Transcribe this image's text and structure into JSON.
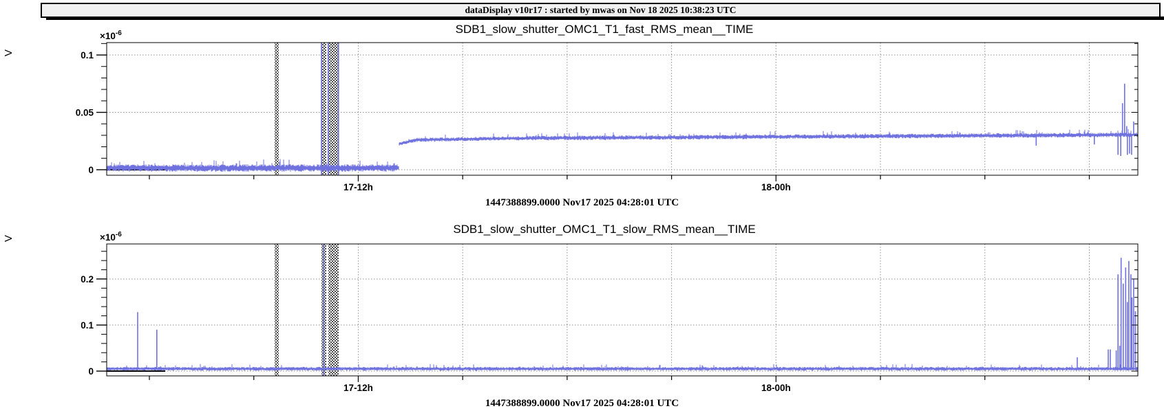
{
  "window": {
    "title": "dataDisplay v10r17 : started by mwas on Nov 18 2025 10:38:23 UTC"
  },
  "colors": {
    "signal": "#6f72de",
    "grid": "#8f8f8f",
    "hatch": "#4d4d4d",
    "axis": "#000000",
    "titlebar_bg": "#f1f1f1"
  },
  "chart_data": [
    {
      "type": "line",
      "title": "SDB1_slow_shutter_OMC1_T1_fast_RMS_mean__TIME",
      "ylabel": "V",
      "y_scale": {
        "base": "×10",
        "exp": "-6"
      },
      "timestamp": "1447388899.0000 Nov17 2025 04:28:01 UTC",
      "ylim": [
        -0.0048,
        0.1108
      ],
      "y_major_ticks": [
        {
          "v": 0,
          "label": "0"
        },
        {
          "v": 0.05,
          "label": "0.05"
        },
        {
          "v": 0.1,
          "label": "0.1"
        }
      ],
      "y_minor_step": 0.01,
      "x_duration_hours": 29.62,
      "x_major_ticks": [
        {
          "t": 7.226,
          "label": "17-12h"
        },
        {
          "t": 19.226,
          "label": "18-00h"
        }
      ],
      "x_first_minor": 1.226,
      "x_minor_step_hours": 3,
      "x_grid_hours": [
        7.226,
        10.226,
        13.226,
        16.226,
        19.226,
        22.226,
        25.226,
        28.226
      ],
      "shaded_bands": [
        {
          "t0": 4.825,
          "t1": 4.944
        },
        {
          "t0": 6.169,
          "t1": 6.308
        },
        {
          "t0": 6.367,
          "t1": 6.664
        }
      ],
      "segments": [
        {
          "t0": 0,
          "t1": 8.4,
          "v0": 0.0015,
          "v1": 0.0015,
          "noise": 0.0032
        },
        {
          "t0": 8.4,
          "t1": 8.9,
          "v0": 0.0225,
          "v1": 0.026,
          "noise": 0.0016
        },
        {
          "t0": 8.9,
          "t1": 12,
          "v0": 0.026,
          "v1": 0.0275,
          "noise": 0.0018
        },
        {
          "t0": 12,
          "t1": 29.62,
          "v0": 0.0275,
          "v1": 0.0305,
          "noise": 0.002
        }
      ],
      "spikes": [
        {
          "t": 6.17,
          "v": "full"
        },
        {
          "t": 6.36,
          "v": "full"
        },
        {
          "t": 6.66,
          "v": "full"
        },
        {
          "t": 26.7,
          "v": 0.021
        },
        {
          "t": 28.37,
          "v": 0.022
        },
        {
          "t": 29.05,
          "v": 0.013
        },
        {
          "t": 29.13,
          "v": 0.012
        },
        {
          "t": 29.18,
          "v": 0.058
        },
        {
          "t": 29.24,
          "v": 0.075
        },
        {
          "t": 29.3,
          "v": 0.038
        },
        {
          "t": 29.32,
          "v": 0.013
        },
        {
          "t": 29.38,
          "v": 0.014
        },
        {
          "t": 29.44,
          "v": 0.013
        },
        {
          "t": 29.5,
          "v": 0.042
        }
      ]
    },
    {
      "type": "line",
      "title": "SDB1_slow_shutter_OMC1_T1_slow_RMS_mean__TIME",
      "ylabel": "V",
      "y_scale": {
        "base": "×10",
        "exp": "-6"
      },
      "timestamp": "1447388899.0000 Nov17 2025 04:28:01 UTC",
      "ylim": [
        -0.0104,
        0.276
      ],
      "y_major_ticks": [
        {
          "v": 0,
          "label": "0"
        },
        {
          "v": 0.1,
          "label": "0.1"
        },
        {
          "v": 0.2,
          "label": "0.2"
        }
      ],
      "y_minor_step": 0.02,
      "x_duration_hours": 29.62,
      "x_major_ticks": [
        {
          "t": 7.226,
          "label": "17-12h"
        },
        {
          "t": 19.226,
          "label": "18-00h"
        }
      ],
      "x_first_minor": 1.226,
      "x_minor_step_hours": 3,
      "x_grid_hours": [
        7.226,
        10.226,
        13.226,
        16.226,
        19.226,
        22.226,
        25.226,
        28.226
      ],
      "shaded_bands": [
        {
          "t0": 4.825,
          "t1": 4.944
        },
        {
          "t0": 6.169,
          "t1": 6.308
        },
        {
          "t0": 6.367,
          "t1": 6.664
        }
      ],
      "segments": [
        {
          "t0": 0,
          "t1": 29.62,
          "v0": 0.005,
          "v1": 0.005,
          "noise": 0.0042
        }
      ],
      "spikes": [
        {
          "t": 0.89,
          "v": 0.128
        },
        {
          "t": 1.44,
          "v": 0.09
        },
        {
          "t": 6.23,
          "v": "full"
        },
        {
          "t": 27.88,
          "v": 0.03
        },
        {
          "t": 28.77,
          "v": 0.047
        },
        {
          "t": 28.83,
          "v": 0.047
        },
        {
          "t": 29.0,
          "v": 0.045
        },
        {
          "t": 29.05,
          "v": 0.21
        },
        {
          "t": 29.1,
          "v": 0.055
        },
        {
          "t": 29.14,
          "v": 0.246
        },
        {
          "t": 29.2,
          "v": 0.19
        },
        {
          "t": 29.27,
          "v": 0.225
        },
        {
          "t": 29.32,
          "v": 0.15
        },
        {
          "t": 29.36,
          "v": 0.239
        },
        {
          "t": 29.42,
          "v": 0.21
        },
        {
          "t": 29.45,
          "v": 0.16
        },
        {
          "t": 29.5,
          "v": 0.2
        },
        {
          "t": 29.55,
          "v": 0.13
        }
      ]
    }
  ]
}
